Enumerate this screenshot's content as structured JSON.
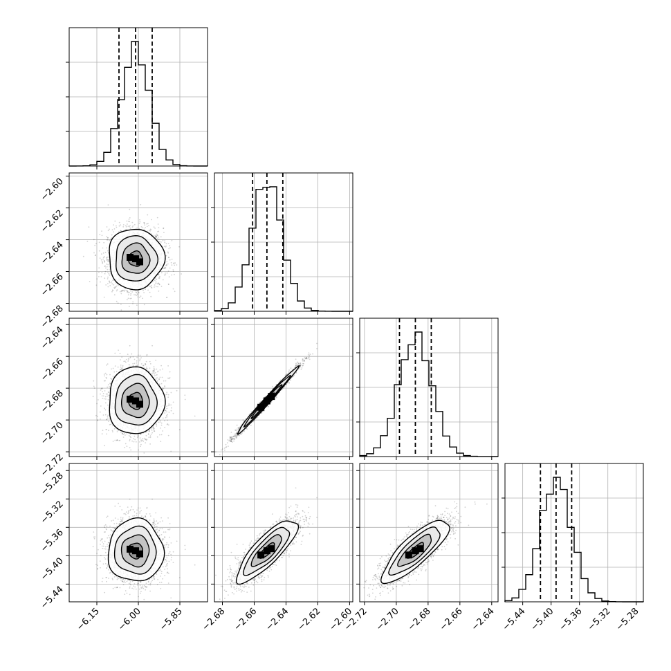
{
  "chart_data": {
    "type": "corner",
    "parameters": [
      {
        "id": "p0",
        "range": [
          -6.25,
          -5.75
        ],
        "ticks": [
          -6.15,
          -6.0,
          -5.85
        ],
        "tick_labels": [
          "−6.15",
          "−6.00",
          "−5.85"
        ],
        "mean": -6.01,
        "sigma": 0.05,
        "quantiles": [
          -6.07,
          -6.01,
          -5.95
        ]
      },
      {
        "id": "p1",
        "range": [
          -2.685,
          -2.598
        ],
        "ticks": [
          -2.68,
          -2.66,
          -2.64,
          -2.62,
          -2.6
        ],
        "tick_labels": [
          "−2.68",
          "−2.66",
          "−2.64",
          "−2.62",
          "−2.60"
        ],
        "mean": -2.652,
        "sigma": 0.0095,
        "quantiles": [
          -2.661,
          -2.652,
          -2.642
        ]
      },
      {
        "id": "p2",
        "range": [
          -2.723,
          -2.636
        ],
        "ticks": [
          -2.72,
          -2.7,
          -2.68,
          -2.66,
          -2.64
        ],
        "tick_labels": [
          "−2.72",
          "−2.70",
          "−2.68",
          "−2.66",
          "−2.64"
        ],
        "mean": -2.688,
        "sigma": 0.0105,
        "quantiles": [
          -2.698,
          -2.688,
          -2.678
        ]
      },
      {
        "id": "p3",
        "range": [
          -5.465,
          -5.27
        ],
        "ticks": [
          -5.44,
          -5.4,
          -5.36,
          -5.32,
          -5.28
        ],
        "tick_labels": [
          "−5.44",
          "−5.40",
          "−5.36",
          "−5.32",
          "−5.28"
        ],
        "mean": -5.393,
        "sigma": 0.022,
        "quantiles": [
          -5.415,
          -5.393,
          -5.371
        ]
      }
    ],
    "panels_2d": [
      {
        "x": 0,
        "y": 1,
        "correlation": 0.0
      },
      {
        "x": 0,
        "y": 2,
        "correlation": 0.0
      },
      {
        "x": 1,
        "y": 2,
        "correlation": 0.99
      },
      {
        "x": 0,
        "y": 3,
        "correlation": 0.0
      },
      {
        "x": 1,
        "y": 3,
        "correlation": 0.82
      },
      {
        "x": 2,
        "y": 3,
        "correlation": 0.82
      }
    ],
    "histogram_bins": 20,
    "contour_levels_sigma": [
      0.5,
      1.0,
      1.5,
      2.0
    ],
    "grid": true,
    "title": "",
    "xlabel": "",
    "ylabel": ""
  }
}
